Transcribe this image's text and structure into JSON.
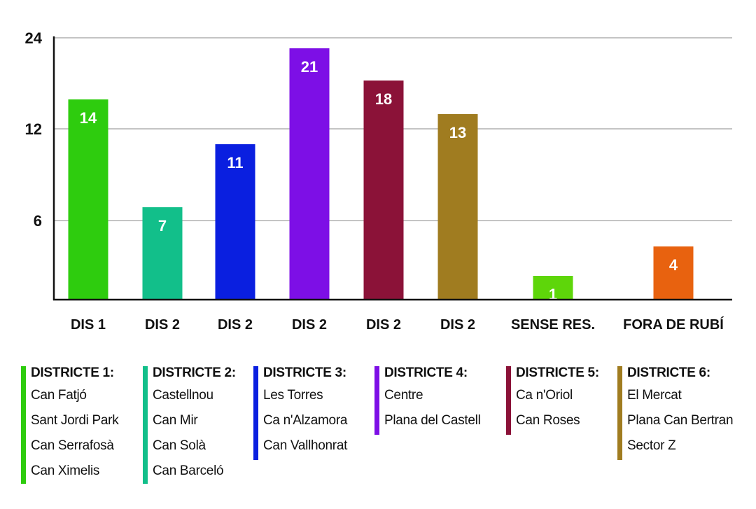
{
  "chart_data": {
    "type": "bar",
    "categories": [
      "DIS 1",
      "DIS 2",
      "DIS 2",
      "DIS 2",
      "DIS 2",
      "DIS 2",
      "SENSE RES.",
      "FORA DE RUBÍ"
    ],
    "values": [
      14,
      7,
      11,
      21,
      18,
      13,
      1,
      4
    ],
    "colors": [
      "#2ecc0e",
      "#12bf8a",
      "#0a1fe0",
      "#7d0fe6",
      "#8b1238",
      "#a07c20",
      "#5ed60a",
      "#e8620f"
    ],
    "yticks": [
      6,
      12,
      24
    ],
    "grid": true,
    "title": "",
    "xlabel": "",
    "ylabel": ""
  },
  "legend": [
    {
      "title": "DISTRICTE 1:",
      "color": "#2ecc0e",
      "items": [
        "Can Fatjó",
        "Sant Jordi Park",
        "Can Serrafosà",
        "Can Ximelis"
      ]
    },
    {
      "title": "DISTRICTE 2:",
      "color": "#12bf8a",
      "items": [
        "Castellnou",
        "Can Mir",
        "Can Solà",
        "Can Barceló"
      ]
    },
    {
      "title": "DISTRICTE 3:",
      "color": "#0a1fe0",
      "items": [
        "Les Torres",
        "Ca n'Alzamora",
        "Can Vallhonrat"
      ]
    },
    {
      "title": "DISTRICTE 4:",
      "color": "#7d0fe6",
      "items": [
        "Centre",
        "Plana del Castell"
      ]
    },
    {
      "title": "DISTRICTE 5:",
      "color": "#8b1238",
      "items": [
        "Ca n'Oriol",
        "Can Roses"
      ]
    },
    {
      "title": "DISTRICTE 6:",
      "color": "#a07c20",
      "items": [
        "El Mercat",
        "Plana Can Bertran",
        "Sector Z"
      ]
    }
  ]
}
